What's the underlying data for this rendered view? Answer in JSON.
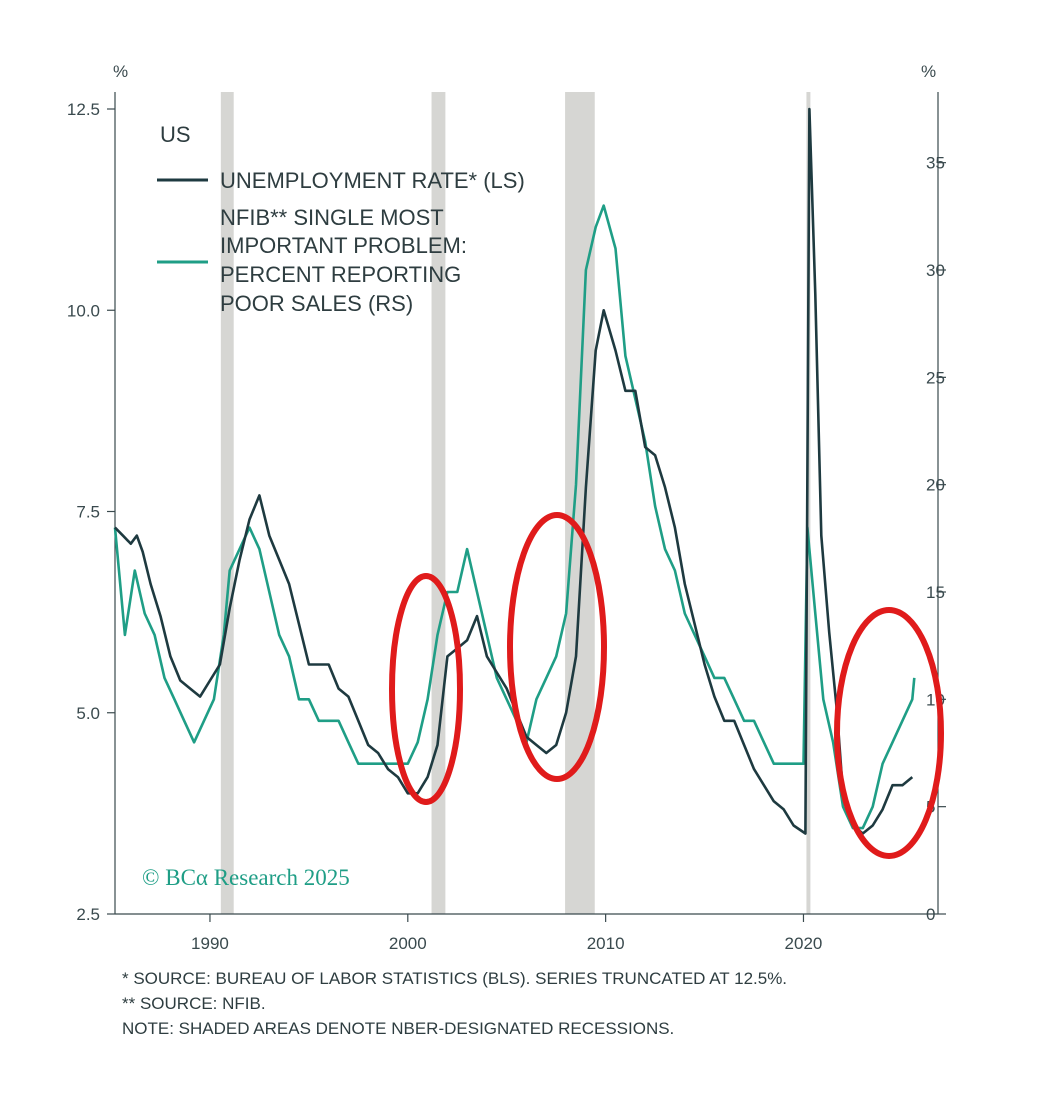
{
  "colors": {
    "unemployment": "#1e3a40",
    "nfib": "#1f9e86",
    "recession": "#d6d6d3",
    "axis": "#3a4a4e",
    "annotation": "#e01b1b",
    "copyright": "#1f9e86"
  },
  "chart_data": {
    "type": "line",
    "title": "US",
    "left_axis": {
      "unit_label": "%",
      "ylim": [
        2.5,
        12.5
      ],
      "ticks": [
        "12.5",
        "10.0",
        "7.5",
        "5.0",
        "2.5"
      ],
      "tick_values": [
        12.5,
        10.0,
        7.5,
        5.0,
        2.5
      ]
    },
    "right_axis": {
      "unit_label": "%",
      "ylim": [
        0,
        37.5
      ],
      "ticks": [
        "35",
        "30",
        "25",
        "20",
        "15",
        "10",
        "5",
        "0"
      ],
      "tick_values": [
        35,
        30,
        25,
        20,
        15,
        10,
        5,
        0
      ]
    },
    "x_axis": {
      "xlim": [
        1985.2,
        2026.8
      ],
      "ticks": [
        "1990",
        "2000",
        "2010",
        "2020"
      ],
      "tick_values": [
        1990,
        2000,
        2010,
        2020
      ]
    },
    "recessions": [
      [
        1990.55,
        1991.2
      ],
      [
        2001.2,
        2001.9
      ],
      [
        2007.95,
        2009.45
      ],
      [
        2020.15,
        2020.35
      ]
    ],
    "series": [
      {
        "name": "UNEMPLOYMENT RATE* (LS)",
        "axis": "left",
        "points": [
          [
            1985.2,
            7.3
          ],
          [
            1985.6,
            7.2
          ],
          [
            1986.0,
            7.1
          ],
          [
            1986.3,
            7.2
          ],
          [
            1986.6,
            7.0
          ],
          [
            1987.0,
            6.6
          ],
          [
            1987.5,
            6.2
          ],
          [
            1988.0,
            5.7
          ],
          [
            1988.5,
            5.4
          ],
          [
            1989.0,
            5.3
          ],
          [
            1989.5,
            5.2
          ],
          [
            1990.0,
            5.4
          ],
          [
            1990.5,
            5.6
          ],
          [
            1991.0,
            6.3
          ],
          [
            1991.5,
            6.9
          ],
          [
            1992.0,
            7.4
          ],
          [
            1992.5,
            7.7
          ],
          [
            1993.0,
            7.2
          ],
          [
            1993.5,
            6.9
          ],
          [
            1994.0,
            6.6
          ],
          [
            1994.5,
            6.1
          ],
          [
            1995.0,
            5.6
          ],
          [
            1995.5,
            5.6
          ],
          [
            1996.0,
            5.6
          ],
          [
            1996.5,
            5.3
          ],
          [
            1997.0,
            5.2
          ],
          [
            1997.5,
            4.9
          ],
          [
            1998.0,
            4.6
          ],
          [
            1998.5,
            4.5
          ],
          [
            1999.0,
            4.3
          ],
          [
            1999.5,
            4.2
          ],
          [
            2000.0,
            4.0
          ],
          [
            2000.5,
            4.0
          ],
          [
            2001.0,
            4.2
          ],
          [
            2001.5,
            4.6
          ],
          [
            2002.0,
            5.7
          ],
          [
            2002.5,
            5.8
          ],
          [
            2003.0,
            5.9
          ],
          [
            2003.5,
            6.2
          ],
          [
            2004.0,
            5.7
          ],
          [
            2004.5,
            5.5
          ],
          [
            2005.0,
            5.3
          ],
          [
            2005.5,
            5.0
          ],
          [
            2006.0,
            4.7
          ],
          [
            2006.5,
            4.6
          ],
          [
            2007.0,
            4.5
          ],
          [
            2007.5,
            4.6
          ],
          [
            2008.0,
            5.0
          ],
          [
            2008.5,
            5.7
          ],
          [
            2009.0,
            7.8
          ],
          [
            2009.5,
            9.5
          ],
          [
            2009.9,
            10.0
          ],
          [
            2010.5,
            9.5
          ],
          [
            2011.0,
            9.0
          ],
          [
            2011.5,
            9.0
          ],
          [
            2012.0,
            8.3
          ],
          [
            2012.5,
            8.2
          ],
          [
            2013.0,
            7.8
          ],
          [
            2013.5,
            7.3
          ],
          [
            2014.0,
            6.6
          ],
          [
            2014.5,
            6.1
          ],
          [
            2015.0,
            5.6
          ],
          [
            2015.5,
            5.2
          ],
          [
            2016.0,
            4.9
          ],
          [
            2016.5,
            4.9
          ],
          [
            2017.0,
            4.6
          ],
          [
            2017.5,
            4.3
          ],
          [
            2018.0,
            4.1
          ],
          [
            2018.5,
            3.9
          ],
          [
            2019.0,
            3.8
          ],
          [
            2019.5,
            3.6
          ],
          [
            2020.1,
            3.5
          ],
          [
            2020.3,
            12.5
          ],
          [
            2020.6,
            10.2
          ],
          [
            2020.9,
            7.2
          ],
          [
            2021.3,
            6.0
          ],
          [
            2021.7,
            5.0
          ],
          [
            2022.0,
            4.0
          ],
          [
            2022.5,
            3.6
          ],
          [
            2023.0,
            3.5
          ],
          [
            2023.5,
            3.6
          ],
          [
            2024.0,
            3.8
          ],
          [
            2024.5,
            4.1
          ],
          [
            2025.0,
            4.1
          ],
          [
            2025.5,
            4.2
          ]
        ]
      },
      {
        "name": "NFIB** SINGLE MOST IMPORTANT PROBLEM: PERCENT REPORTING POOR SALES (RS)",
        "axis": "right",
        "points": [
          [
            1985.2,
            18
          ],
          [
            1985.7,
            13
          ],
          [
            1986.2,
            16
          ],
          [
            1986.7,
            14
          ],
          [
            1987.2,
            13
          ],
          [
            1987.7,
            11
          ],
          [
            1988.2,
            10
          ],
          [
            1988.7,
            9
          ],
          [
            1989.2,
            8
          ],
          [
            1989.7,
            9
          ],
          [
            1990.2,
            10
          ],
          [
            1990.7,
            13
          ],
          [
            1991.0,
            16
          ],
          [
            1991.5,
            17
          ],
          [
            1992.0,
            18
          ],
          [
            1992.5,
            17
          ],
          [
            1993.0,
            15
          ],
          [
            1993.5,
            13
          ],
          [
            1994.0,
            12
          ],
          [
            1994.5,
            10
          ],
          [
            1995.0,
            10
          ],
          [
            1995.5,
            9
          ],
          [
            1996.0,
            9
          ],
          [
            1996.5,
            9
          ],
          [
            1997.0,
            8
          ],
          [
            1997.5,
            7
          ],
          [
            1998.0,
            7
          ],
          [
            1998.5,
            7
          ],
          [
            1999.0,
            7
          ],
          [
            1999.5,
            7
          ],
          [
            2000.0,
            7
          ],
          [
            2000.5,
            8
          ],
          [
            2001.0,
            10
          ],
          [
            2001.5,
            13
          ],
          [
            2002.0,
            15
          ],
          [
            2002.5,
            15
          ],
          [
            2003.0,
            17
          ],
          [
            2003.5,
            15
          ],
          [
            2004.0,
            13
          ],
          [
            2004.5,
            11
          ],
          [
            2005.0,
            10
          ],
          [
            2005.5,
            9
          ],
          [
            2006.0,
            8
          ],
          [
            2006.5,
            10
          ],
          [
            2007.0,
            11
          ],
          [
            2007.5,
            12
          ],
          [
            2008.0,
            14
          ],
          [
            2008.5,
            20
          ],
          [
            2009.0,
            30
          ],
          [
            2009.5,
            32
          ],
          [
            2009.9,
            33
          ],
          [
            2010.5,
            31
          ],
          [
            2011.0,
            26
          ],
          [
            2011.5,
            24
          ],
          [
            2012.0,
            22
          ],
          [
            2012.5,
            19
          ],
          [
            2013.0,
            17
          ],
          [
            2013.5,
            16
          ],
          [
            2014.0,
            14
          ],
          [
            2014.5,
            13
          ],
          [
            2015.0,
            12
          ],
          [
            2015.5,
            11
          ],
          [
            2016.0,
            11
          ],
          [
            2016.5,
            10
          ],
          [
            2017.0,
            9
          ],
          [
            2017.5,
            9
          ],
          [
            2018.0,
            8
          ],
          [
            2018.5,
            7
          ],
          [
            2019.0,
            7
          ],
          [
            2019.5,
            7
          ],
          [
            2020.0,
            7
          ],
          [
            2020.2,
            18
          ],
          [
            2020.6,
            14
          ],
          [
            2021.0,
            10
          ],
          [
            2021.5,
            8
          ],
          [
            2022.0,
            5
          ],
          [
            2022.5,
            4
          ],
          [
            2023.0,
            4
          ],
          [
            2023.5,
            5
          ],
          [
            2024.0,
            7
          ],
          [
            2024.5,
            8
          ],
          [
            2025.0,
            9
          ],
          [
            2025.5,
            10
          ],
          [
            2025.6,
            11
          ]
        ]
      }
    ],
    "annotations": [
      "red circle around 2001",
      "red circle around 2008",
      "red circle around 2025"
    ]
  },
  "copyright": "© BCα Research 2025",
  "notes": [
    "*  SOURCE: BUREAU OF LABOR STATISTICS (BLS). SERIES TRUNCATED AT 12.5%.",
    "** SOURCE: NFIB.",
    "NOTE: SHADED AREAS DENOTE NBER-DESIGNATED RECESSIONS."
  ],
  "legend": {
    "series1_lines": [
      "UNEMPLOYMENT RATE* (LS)"
    ],
    "series2_lines": [
      "NFIB** SINGLE MOST",
      "IMPORTANT PROBLEM:",
      "PERCENT REPORTING",
      "POOR SALES (RS)"
    ]
  }
}
